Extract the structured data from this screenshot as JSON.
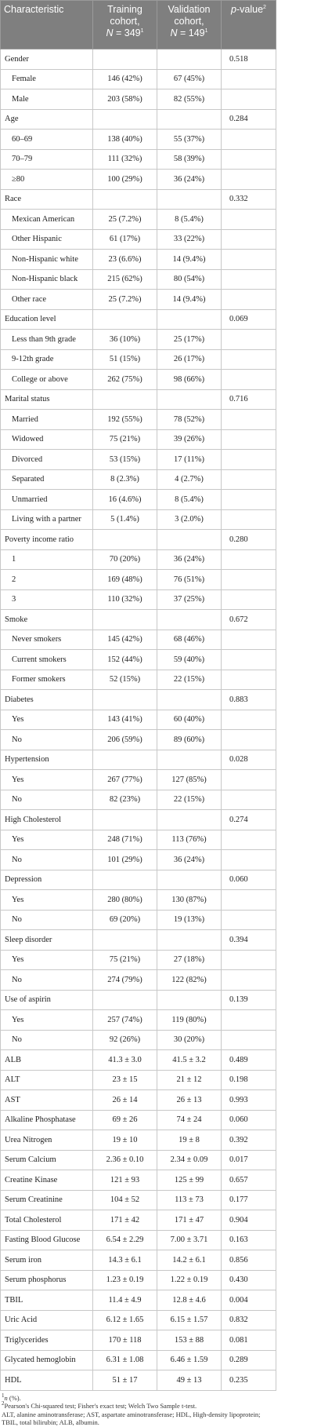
{
  "header": {
    "characteristic": "Characteristic",
    "training": {
      "line1": "Training cohort,",
      "n_symbol": "N",
      "n_value": " = 349",
      "note": "1"
    },
    "validation": {
      "line1": "Validation cohort,",
      "n_symbol": "N",
      "n_value": " = 149",
      "note": "1"
    },
    "p_value": {
      "symbol": "p",
      "rest": "-value",
      "note": "2"
    }
  },
  "table": {
    "rows": [
      [
        "Gender",
        null,
        null,
        "0.518"
      ],
      [
        "Female",
        "146 (42%)",
        "67 (45%)",
        null
      ],
      [
        "Male",
        "203 (58%)",
        "82 (55%)",
        null
      ],
      [
        "Age",
        null,
        null,
        "0.284"
      ],
      [
        "60–69",
        "138 (40%)",
        "55 (37%)",
        null
      ],
      [
        "70–79",
        "111 (32%)",
        "58 (39%)",
        null
      ],
      [
        "≥80",
        "100 (29%)",
        "36 (24%)",
        null
      ],
      [
        "Race",
        null,
        null,
        "0.332"
      ],
      [
        "Mexican American",
        "25 (7.2%)",
        "8 (5.4%)",
        null
      ],
      [
        "Other Hispanic",
        "61 (17%)",
        "33 (22%)",
        null
      ],
      [
        "Non-Hispanic white",
        "23 (6.6%)",
        "14 (9.4%)",
        null
      ],
      [
        "Non-Hispanic black",
        "215 (62%)",
        "80 (54%)",
        null
      ],
      [
        "Other race",
        "25 (7.2%)",
        "14 (9.4%)",
        null
      ],
      [
        "Education level",
        null,
        null,
        "0.069"
      ],
      [
        "Less than 9th grade",
        "36 (10%)",
        "25 (17%)",
        null
      ],
      [
        "9-12th grade",
        "51 (15%)",
        "26 (17%)",
        null
      ],
      [
        "College or above",
        "262 (75%)",
        "98 (66%)",
        null
      ],
      [
        "Marital status",
        null,
        null,
        "0.716"
      ],
      [
        "Married",
        "192 (55%)",
        "78 (52%)",
        null
      ],
      [
        "Widowed",
        "75 (21%)",
        "39 (26%)",
        null
      ],
      [
        "Divorced",
        "53 (15%)",
        "17 (11%)",
        null
      ],
      [
        "Separated",
        "8 (2.3%)",
        "4 (2.7%)",
        null
      ],
      [
        "Unmarried",
        "16 (4.6%)",
        "8 (5.4%)",
        null
      ],
      [
        "Living with a partner",
        "5 (1.4%)",
        "3 (2.0%)",
        null
      ],
      [
        "Poverty income ratio",
        null,
        null,
        "0.280"
      ],
      [
        "1",
        "70 (20%)",
        "36 (24%)",
        null
      ],
      [
        "2",
        "169 (48%)",
        "76 (51%)",
        null
      ],
      [
        "3",
        "110 (32%)",
        "37 (25%)",
        null
      ],
      [
        "Smoke",
        null,
        null,
        "0.672"
      ],
      [
        "Never smokers",
        "145 (42%)",
        "68 (46%)",
        null
      ],
      [
        "Current smokers",
        "152 (44%)",
        "59 (40%)",
        null
      ],
      [
        "Former smokers",
        "52 (15%)",
        "22 (15%)",
        null
      ],
      [
        "Diabetes",
        null,
        null,
        "0.883"
      ],
      [
        "Yes",
        "143 (41%)",
        "60 (40%)",
        null
      ],
      [
        "No",
        "206 (59%)",
        "89 (60%)",
        null
      ],
      [
        "Hypertension",
        null,
        null,
        "0.028"
      ],
      [
        "Yes",
        "267 (77%)",
        "127 (85%)",
        null
      ],
      [
        "No",
        "82 (23%)",
        "22 (15%)",
        null
      ],
      [
        "High Cholesterol",
        null,
        null,
        "0.274"
      ],
      [
        "Yes",
        "248 (71%)",
        "113 (76%)",
        null
      ],
      [
        "No",
        "101 (29%)",
        "36 (24%)",
        null
      ],
      [
        "Depression",
        null,
        null,
        "0.060"
      ],
      [
        "Yes",
        "280 (80%)",
        "130 (87%)",
        null
      ],
      [
        "No",
        "69 (20%)",
        "19 (13%)",
        null
      ],
      [
        "Sleep disorder",
        null,
        null,
        "0.394"
      ],
      [
        "Yes",
        "75 (21%)",
        "27 (18%)",
        null
      ],
      [
        "No",
        "274 (79%)",
        "122 (82%)",
        null
      ],
      [
        "Use of aspirin",
        null,
        null,
        "0.139"
      ],
      [
        "Yes",
        "257 (74%)",
        "119 (80%)",
        null
      ],
      [
        "No",
        "92 (26%)",
        "30 (20%)",
        null
      ],
      [
        "ALB",
        "41.3 ± 3.0",
        "41.5 ± 3.2",
        "0.489"
      ],
      [
        "ALT",
        "23 ± 15",
        "21 ± 12",
        "0.198"
      ],
      [
        "AST",
        "26 ± 14",
        "26 ± 13",
        "0.993"
      ],
      [
        "Alkaline Phosphatase",
        "69 ± 26",
        "74 ± 24",
        "0.060"
      ],
      [
        "Urea Nitrogen",
        "19 ± 10",
        "19 ± 8",
        "0.392"
      ],
      [
        "Serum Calcium",
        "2.36 ± 0.10",
        "2.34 ± 0.09",
        "0.017"
      ],
      [
        "Creatine Kinase",
        "121 ± 93",
        "125 ± 99",
        "0.657"
      ],
      [
        "Serum Creatinine",
        "104 ± 52",
        "113 ± 73",
        "0.177"
      ],
      [
        "Total Cholesterol",
        "171 ± 42",
        "171 ± 47",
        "0.904"
      ],
      [
        "Fasting Blood Glucose",
        "6.54 ± 2.29",
        "7.00 ± 3.71",
        "0.163"
      ],
      [
        "Serum iron",
        "14.3 ± 6.1",
        "14.2 ± 6.1",
        "0.856"
      ],
      [
        "Serum phosphorus",
        "1.23 ± 0.19",
        "1.22 ± 0.19",
        "0.430"
      ],
      [
        "TBIL",
        "11.4 ± 4.9",
        "12.8 ± 4.6",
        "0.004"
      ],
      [
        "Uric Acid",
        "6.12 ± 1.65",
        "6.15 ± 1.57",
        "0.832"
      ],
      [
        "Triglycerides",
        "170 ± 118",
        "153 ± 88",
        "0.081"
      ],
      [
        "Glycated hemoglobin",
        "6.31 ± 1.08",
        "6.46 ± 1.59",
        "0.289"
      ],
      [
        "HDL",
        "51 ± 17",
        "49 ± 13",
        "0.235"
      ]
    ]
  },
  "footnotes": [
    {
      "mark": "1",
      "italic": "n",
      "text": " (%)."
    },
    {
      "mark": "2",
      "text": "Pearson's Chi-squared test; Fisher's exact test; Welch Two Sample t-test."
    },
    {
      "text": "ALT, alanine aminotransferase; AST, aspartate aminotransferase; HDL, High-density lipoprotein; TBIL, total bilirubin; ALB, albumin."
    }
  ]
}
